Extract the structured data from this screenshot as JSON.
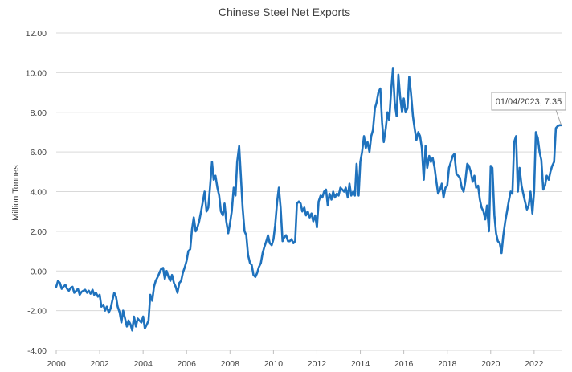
{
  "chart_data": {
    "type": "line",
    "title": "Chinese Steel Net Exports",
    "xlabel": "",
    "ylabel": "Million Tonnes",
    "xlim": [
      2000,
      2023.3
    ],
    "ylim": [
      -4,
      12
    ],
    "x_ticks": [
      "2000",
      "2002",
      "2004",
      "2006",
      "2008",
      "2010",
      "2012",
      "2014",
      "2016",
      "2018",
      "2020",
      "2022"
    ],
    "y_ticks": [
      "-4.00",
      "-2.00",
      "0.00",
      "2.00",
      "4.00",
      "6.00",
      "8.00",
      "10.00",
      "12.00"
    ],
    "grid": true,
    "legend": "none",
    "colors": {
      "series": "#1f72bd"
    },
    "series": [
      {
        "x": [
          2000.0,
          2000.08,
          2000.17,
          2000.25,
          2000.33,
          2000.42,
          2000.5,
          2000.58,
          2000.67,
          2000.75,
          2000.83,
          2000.92,
          2001.0,
          2001.08,
          2001.17,
          2001.25,
          2001.33,
          2001.42,
          2001.5,
          2001.58,
          2001.67,
          2001.75,
          2001.83,
          2001.92,
          2002.0,
          2002.08,
          2002.17,
          2002.25,
          2002.33,
          2002.42,
          2002.5,
          2002.58,
          2002.67,
          2002.75,
          2002.83,
          2002.92,
          2003.0,
          2003.08,
          2003.17,
          2003.25,
          2003.33,
          2003.42,
          2003.5,
          2003.58,
          2003.67,
          2003.75,
          2003.83,
          2003.92,
          2004.0,
          2004.08,
          2004.17,
          2004.25,
          2004.33,
          2004.42,
          2004.5,
          2004.58,
          2004.67,
          2004.75,
          2004.83,
          2004.92,
          2005.0,
          2005.08,
          2005.17,
          2005.25,
          2005.33,
          2005.42,
          2005.5,
          2005.58,
          2005.67,
          2005.75,
          2005.83,
          2005.92,
          2006.0,
          2006.08,
          2006.17,
          2006.25,
          2006.33,
          2006.42,
          2006.5,
          2006.58,
          2006.67,
          2006.75,
          2006.83,
          2006.92,
          2007.0,
          2007.08,
          2007.17,
          2007.25,
          2007.33,
          2007.42,
          2007.5,
          2007.58,
          2007.67,
          2007.75,
          2007.83,
          2007.92,
          2008.0,
          2008.08,
          2008.17,
          2008.25,
          2008.33,
          2008.42,
          2008.5,
          2008.58,
          2008.67,
          2008.75,
          2008.83,
          2008.92,
          2009.0,
          2009.08,
          2009.17,
          2009.25,
          2009.33,
          2009.42,
          2009.5,
          2009.58,
          2009.67,
          2009.75,
          2009.83,
          2009.92,
          2010.0,
          2010.08,
          2010.17,
          2010.25,
          2010.33,
          2010.42,
          2010.5,
          2010.58,
          2010.67,
          2010.75,
          2010.83,
          2010.92,
          2011.0,
          2011.08,
          2011.17,
          2011.25,
          2011.33,
          2011.42,
          2011.5,
          2011.58,
          2011.67,
          2011.75,
          2011.83,
          2011.92,
          2012.0,
          2012.08,
          2012.17,
          2012.25,
          2012.33,
          2012.42,
          2012.5,
          2012.58,
          2012.67,
          2012.75,
          2012.83,
          2012.92,
          2013.0,
          2013.08,
          2013.17,
          2013.25,
          2013.33,
          2013.42,
          2013.5,
          2013.58,
          2013.67,
          2013.75,
          2013.83,
          2013.92,
          2014.0,
          2014.08,
          2014.17,
          2014.25,
          2014.33,
          2014.42,
          2014.5,
          2014.58,
          2014.67,
          2014.75,
          2014.83,
          2014.92,
          2015.0,
          2015.08,
          2015.17,
          2015.25,
          2015.33,
          2015.42,
          2015.5,
          2015.58,
          2015.67,
          2015.75,
          2015.83,
          2015.92,
          2016.0,
          2016.08,
          2016.17,
          2016.25,
          2016.33,
          2016.42,
          2016.5,
          2016.58,
          2016.67,
          2016.75,
          2016.83,
          2016.92,
          2017.0,
          2017.08,
          2017.17,
          2017.25,
          2017.33,
          2017.42,
          2017.5,
          2017.58,
          2017.67,
          2017.75,
          2017.83,
          2017.92,
          2018.0,
          2018.08,
          2018.17,
          2018.25,
          2018.33,
          2018.42,
          2018.5,
          2018.58,
          2018.67,
          2018.75,
          2018.83,
          2018.92,
          2019.0,
          2019.08,
          2019.17,
          2019.25,
          2019.33,
          2019.42,
          2019.5,
          2019.58,
          2019.67,
          2019.75,
          2019.83,
          2019.92,
          2020.0,
          2020.08,
          2020.17,
          2020.25,
          2020.33,
          2020.42,
          2020.5,
          2020.58,
          2020.67,
          2020.75,
          2020.83,
          2020.92,
          2021.0,
          2021.08,
          2021.17,
          2021.25,
          2021.33,
          2021.42,
          2021.5,
          2021.58,
          2021.67,
          2021.75,
          2021.83,
          2021.92,
          2022.0,
          2022.08,
          2022.17,
          2022.25,
          2022.33,
          2022.42,
          2022.5,
          2022.58,
          2022.67,
          2022.75,
          2022.83,
          2022.92,
          2023.0,
          2023.08,
          2023.17,
          2023.25
        ],
        "values": [
          -0.8,
          -0.5,
          -0.6,
          -0.9,
          -0.8,
          -0.7,
          -0.9,
          -1.0,
          -0.85,
          -0.8,
          -1.1,
          -1.0,
          -0.9,
          -1.2,
          -1.05,
          -1.0,
          -0.95,
          -1.1,
          -1.0,
          -1.15,
          -0.95,
          -1.2,
          -1.1,
          -1.3,
          -1.2,
          -1.8,
          -1.7,
          -2.0,
          -1.8,
          -2.1,
          -1.9,
          -1.5,
          -1.1,
          -1.3,
          -1.8,
          -2.1,
          -2.6,
          -2.0,
          -2.4,
          -2.8,
          -2.5,
          -2.7,
          -3.0,
          -2.3,
          -2.8,
          -2.4,
          -2.5,
          -2.6,
          -2.3,
          -2.9,
          -2.7,
          -2.5,
          -1.2,
          -1.5,
          -0.8,
          -0.5,
          -0.3,
          -0.1,
          0.1,
          0.15,
          -0.4,
          0.0,
          -0.3,
          -0.5,
          -0.2,
          -0.6,
          -0.8,
          -1.1,
          -0.6,
          -0.5,
          -0.1,
          0.2,
          0.5,
          1.0,
          1.1,
          2.1,
          2.7,
          2.0,
          2.2,
          2.5,
          3.0,
          3.5,
          4.0,
          3.0,
          3.2,
          4.2,
          5.5,
          4.6,
          4.8,
          4.2,
          3.8,
          3.0,
          2.8,
          3.4,
          2.5,
          1.9,
          2.4,
          3.0,
          4.2,
          3.8,
          5.5,
          6.3,
          4.8,
          3.2,
          2.0,
          1.8,
          0.8,
          0.4,
          0.3,
          -0.2,
          -0.3,
          -0.1,
          0.2,
          0.4,
          0.9,
          1.2,
          1.5,
          1.8,
          1.4,
          1.3,
          1.6,
          2.3,
          3.5,
          4.2,
          3.2,
          1.5,
          1.7,
          1.8,
          1.5,
          1.5,
          1.6,
          1.4,
          1.5,
          3.4,
          3.5,
          3.4,
          3.0,
          3.2,
          2.8,
          3.0,
          2.7,
          2.9,
          2.5,
          2.8,
          2.2,
          3.5,
          3.8,
          3.7,
          4.0,
          4.1,
          3.3,
          3.9,
          3.6,
          4.0,
          3.7,
          3.9,
          3.8,
          4.2,
          4.1,
          4.0,
          4.2,
          3.7,
          4.4,
          3.8,
          4.0,
          3.8,
          5.4,
          3.8,
          5.5,
          6.0,
          6.8,
          6.2,
          6.5,
          6.0,
          6.8,
          7.1,
          8.2,
          8.5,
          9.0,
          9.2,
          7.5,
          6.5,
          7.2,
          8.0,
          7.6,
          9.1,
          10.2,
          8.5,
          7.8,
          9.9,
          8.8,
          8.0,
          8.7,
          8.0,
          8.2,
          9.8,
          9.0,
          7.8,
          7.2,
          6.6,
          7.0,
          6.8,
          6.2,
          4.6,
          6.3,
          5.2,
          5.8,
          5.5,
          5.7,
          5.2,
          4.5,
          3.9,
          4.1,
          4.4,
          3.7,
          4.2,
          4.3,
          5.2,
          5.5,
          5.8,
          5.9,
          4.9,
          4.8,
          4.7,
          4.2,
          4.0,
          4.5,
          5.4,
          5.3,
          5.0,
          4.5,
          4.8,
          4.2,
          4.3,
          3.6,
          3.2,
          3.0,
          2.6,
          3.3,
          2.0,
          5.3,
          5.2,
          2.8,
          1.9,
          1.5,
          1.4,
          0.9,
          1.8,
          2.5,
          3.0,
          3.5,
          4.0,
          3.9,
          6.5,
          6.8,
          4.0,
          5.2,
          4.3,
          3.9,
          3.5,
          3.1,
          3.3,
          4.0,
          2.9,
          4.0,
          7.0,
          6.7,
          6.0,
          5.6,
          4.1,
          4.3,
          4.8,
          4.6,
          5.0,
          5.3,
          5.5,
          7.2,
          7.3,
          7.35,
          7.35
        ]
      }
    ],
    "annotation": {
      "label": "01/04/2023, 7.35",
      "x": 2023.25,
      "y": 7.35
    }
  }
}
